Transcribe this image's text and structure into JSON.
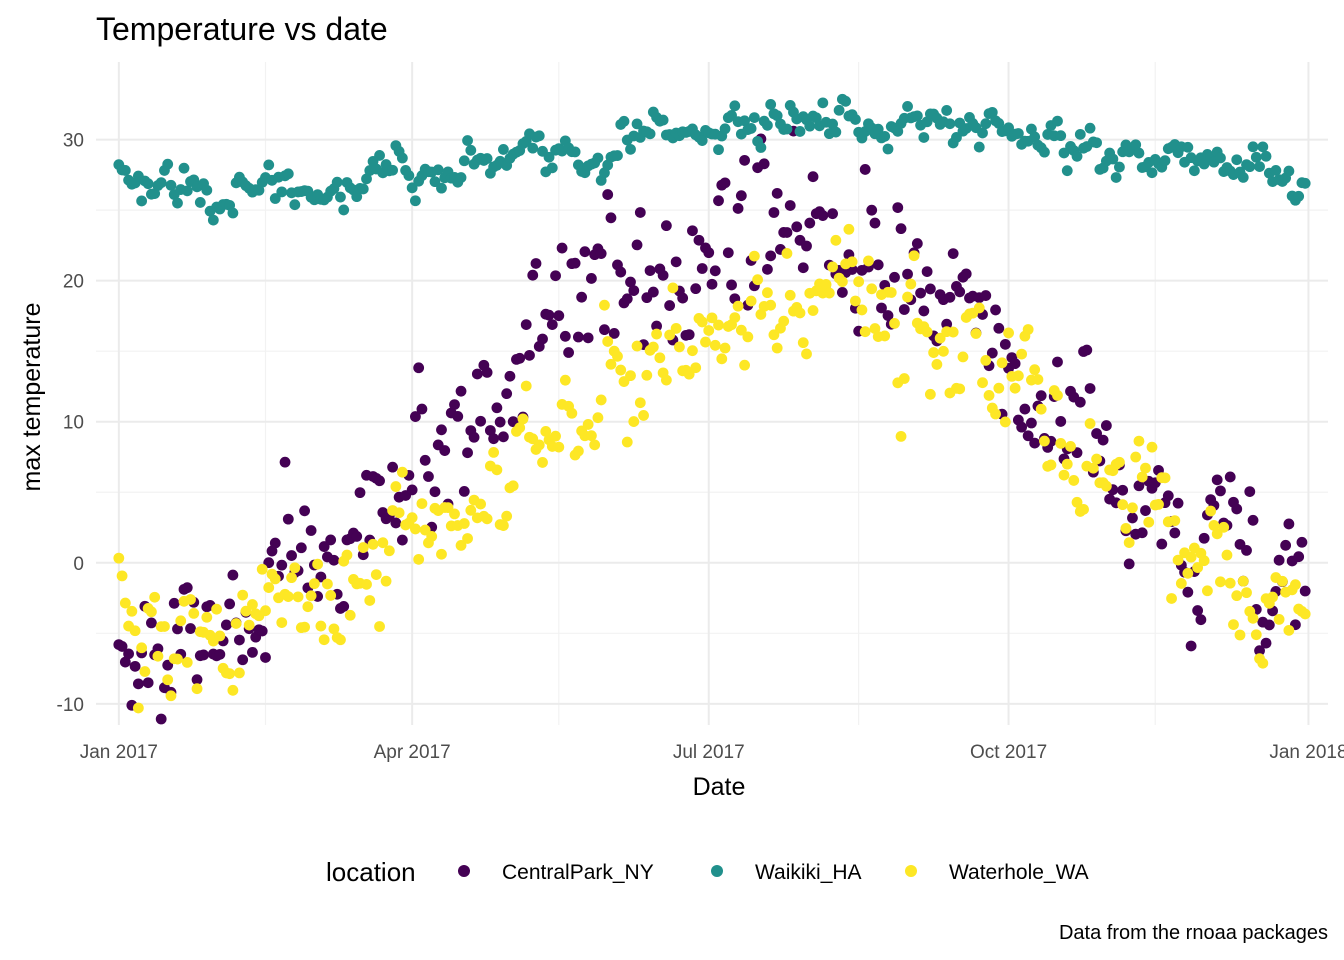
{
  "chart_data": {
    "type": "scatter",
    "title": "Temperature vs date",
    "xlabel": "Date",
    "ylabel": "max temperature",
    "caption": "Data from the rnoaa packages",
    "legend_title": "location",
    "legend_position": "bottom",
    "grid": true,
    "xlim": [
      "2016-12-25",
      "2018-01-07"
    ],
    "ylim": [
      -11.5,
      35.5
    ],
    "x_ticks": [
      {
        "date": "2017-01-01",
        "label": "Jan 2017"
      },
      {
        "date": "2017-04-01",
        "label": "Apr 2017"
      },
      {
        "date": "2017-07-01",
        "label": "Jul 2017"
      },
      {
        "date": "2017-10-01",
        "label": "Oct 2017"
      },
      {
        "date": "2018-01-01",
        "label": "Jan 2018"
      }
    ],
    "x_minor_ticks": [
      "2017-02-15",
      "2017-05-16",
      "2017-08-16",
      "2017-11-15"
    ],
    "y_ticks": [
      {
        "value": -10,
        "label": "-10"
      },
      {
        "value": 0,
        "label": "0"
      },
      {
        "value": 10,
        "label": "10"
      },
      {
        "value": 20,
        "label": "20"
      },
      {
        "value": 30,
        "label": "30"
      }
    ],
    "y_minor_ticks": [
      -5,
      5,
      15,
      25
    ],
    "series": [
      {
        "name": "CentralPark_NY",
        "color": "#440154",
        "annual_mean": 10.5,
        "amplitude": 13.5,
        "peak_day": 201,
        "noise": 4.2,
        "first_day": "2017-01-01",
        "last_day": "2017-12-31"
      },
      {
        "name": "Waikiki_HA",
        "color": "#21908C",
        "annual_mean": 28.9,
        "amplitude": 2.4,
        "peak_day": 220,
        "noise": 1.1,
        "first_day": "2017-01-01",
        "last_day": "2017-12-31"
      },
      {
        "name": "Waterhole_WA",
        "color": "#FDE725",
        "annual_mean": 6.5,
        "amplitude": 11.5,
        "peak_day": 210,
        "noise": 3.2,
        "first_day": "2017-01-01",
        "last_day": "2017-12-31"
      }
    ]
  }
}
